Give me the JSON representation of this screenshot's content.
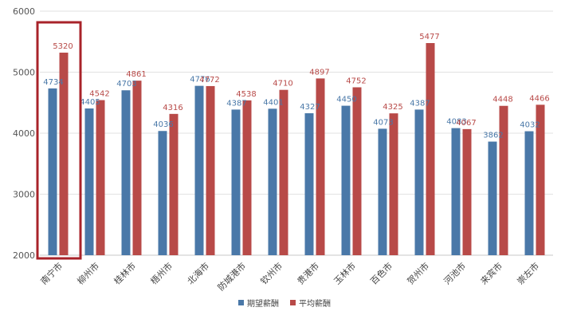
{
  "chart_data": {
    "type": "bar",
    "categories": [
      "南宁市",
      "柳州市",
      "桂林市",
      "梧州市",
      "北海市",
      "防城港市",
      "钦州市",
      "贵港市",
      "玉林市",
      "百色市",
      "贺州市",
      "河池市",
      "来宾市",
      "崇左市"
    ],
    "series": [
      {
        "name": "期望薪酬",
        "color": "#4a78a8",
        "values": [
          4734,
          4405,
          4703,
          4036,
          4776,
          4387,
          4401,
          4327,
          4450,
          4073,
          4387,
          4083,
          3862,
          4032
        ]
      },
      {
        "name": "平均薪酬",
        "color": "#b84a48",
        "values": [
          5320,
          4542,
          4861,
          4316,
          4772,
          4538,
          4710,
          4897,
          4752,
          4325,
          5477,
          4067,
          4448,
          4466
        ]
      }
    ],
    "yticks": [
      "2000",
      "3000",
      "4000",
      "5000",
      "6000"
    ],
    "ylim": [
      2000,
      6000
    ],
    "grid": true,
    "legend_position": "bottom-center",
    "highlight_category": "南宁市",
    "highlight_color": "#a8232a"
  }
}
